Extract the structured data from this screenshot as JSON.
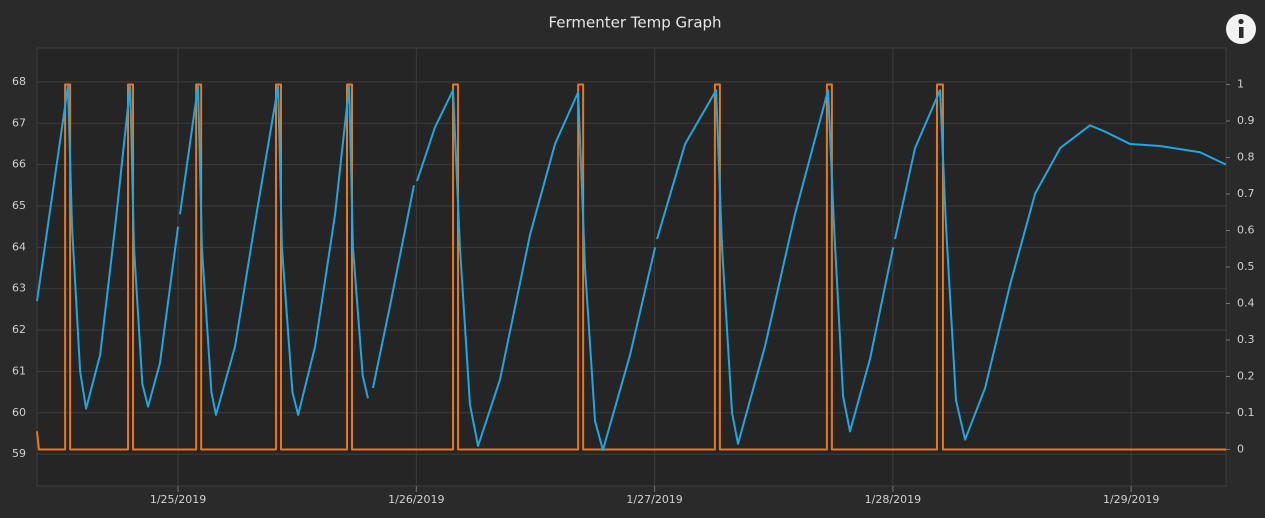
{
  "chart_data": {
    "type": "line",
    "title": "Fermenter Temp Graph",
    "xlim": [
      24.408,
      29.398
    ],
    "ylim": [
      58.23,
      68.82
    ],
    "y2lim": [
      -0.1,
      1.1
    ],
    "xticks": [
      {
        "value": 25,
        "label": "1/25/2019"
      },
      {
        "value": 26,
        "label": "1/26/2019"
      },
      {
        "value": 27,
        "label": "1/27/2019"
      },
      {
        "value": 28,
        "label": "1/28/2019"
      },
      {
        "value": 29,
        "label": "1/29/2019"
      }
    ],
    "yticks": [
      59,
      60,
      61,
      62,
      63,
      64,
      65,
      66,
      67,
      68
    ],
    "y2ticks": [
      0,
      0.1,
      0.2,
      0.3,
      0.4,
      0.5,
      0.6,
      0.7,
      0.8,
      0.9,
      1
    ],
    "grid": true,
    "series": [
      {
        "color": "#1ea7e1",
        "x": [
          24.408,
          24.463,
          24.538,
          24.555,
          24.589,
          24.614,
          24.673,
          24.736,
          24.799,
          24.815,
          24.85,
          24.874,
          24.924,
          25.0,
          25.001,
          25.008,
          25.084,
          25.1,
          25.14,
          25.159,
          25.239,
          25.323,
          25.42,
          25.436,
          25.48,
          25.504,
          25.575,
          25.659,
          25.718,
          25.734,
          25.775,
          25.797,
          25.807,
          25.818,
          25.89,
          25.99,
          25.996,
          26.003,
          26.078,
          26.154,
          26.183,
          26.225,
          26.259,
          26.351,
          26.477,
          26.582,
          26.679,
          26.708,
          26.75,
          26.783,
          26.897,
          27.002,
          27.006,
          27.01,
          27.128,
          27.258,
          27.283,
          27.325,
          27.35,
          27.463,
          27.589,
          27.728,
          27.753,
          27.791,
          27.82,
          27.904,
          28.001,
          28.005,
          28.009,
          28.093,
          28.198,
          28.223,
          28.265,
          28.303,
          28.387,
          28.492,
          28.597,
          28.702,
          28.827,
          28.89,
          28.995,
          29.121,
          29.289,
          29.398
        ],
        "values": [
          62.7,
          64.9,
          67.9,
          64.5,
          61.0,
          60.1,
          61.4,
          64.5,
          67.9,
          64.0,
          60.7,
          60.15,
          61.2,
          64.5,
          null,
          64.8,
          67.9,
          64.0,
          60.5,
          59.95,
          61.6,
          64.6,
          67.9,
          64.0,
          60.5,
          59.95,
          61.6,
          64.8,
          67.9,
          64.0,
          60.9,
          60.35,
          null,
          60.6,
          62.6,
          65.5,
          null,
          65.6,
          66.9,
          67.8,
          64.0,
          60.2,
          59.2,
          60.8,
          64.3,
          66.5,
          67.75,
          63.5,
          59.8,
          59.1,
          61.4,
          64.0,
          null,
          64.2,
          66.5,
          67.8,
          64.0,
          60.0,
          59.25,
          61.6,
          64.8,
          67.8,
          64.5,
          60.4,
          59.55,
          61.3,
          64.0,
          null,
          64.2,
          66.4,
          67.8,
          64.5,
          60.3,
          59.35,
          60.6,
          63.1,
          65.3,
          66.4,
          66.95,
          66.8,
          66.5,
          66.45,
          66.3,
          66.0
        ]
      },
      {
        "color": "#e8771e",
        "axis": "y2",
        "x": [
          24.408,
          24.416,
          24.526,
          24.526,
          24.547,
          24.547,
          24.79,
          24.79,
          24.811,
          24.811,
          25.076,
          25.076,
          25.097,
          25.097,
          25.411,
          25.411,
          25.432,
          25.432,
          25.709,
          25.709,
          25.73,
          25.73,
          26.154,
          26.154,
          26.175,
          26.175,
          26.679,
          26.679,
          26.7,
          26.7,
          27.253,
          27.253,
          27.274,
          27.274,
          27.723,
          27.723,
          27.744,
          27.744,
          28.185,
          28.185,
          28.21,
          28.21,
          29.398
        ],
        "values": [
          0.05,
          0,
          0,
          1,
          1,
          0,
          0,
          1,
          1,
          0,
          0,
          1,
          1,
          0,
          0,
          1,
          1,
          0,
          0,
          1,
          1,
          0,
          0,
          1,
          1,
          0,
          0,
          1,
          1,
          0,
          0,
          1,
          1,
          0,
          0,
          1,
          1,
          0,
          0,
          1,
          1,
          0,
          0
        ]
      }
    ]
  }
}
